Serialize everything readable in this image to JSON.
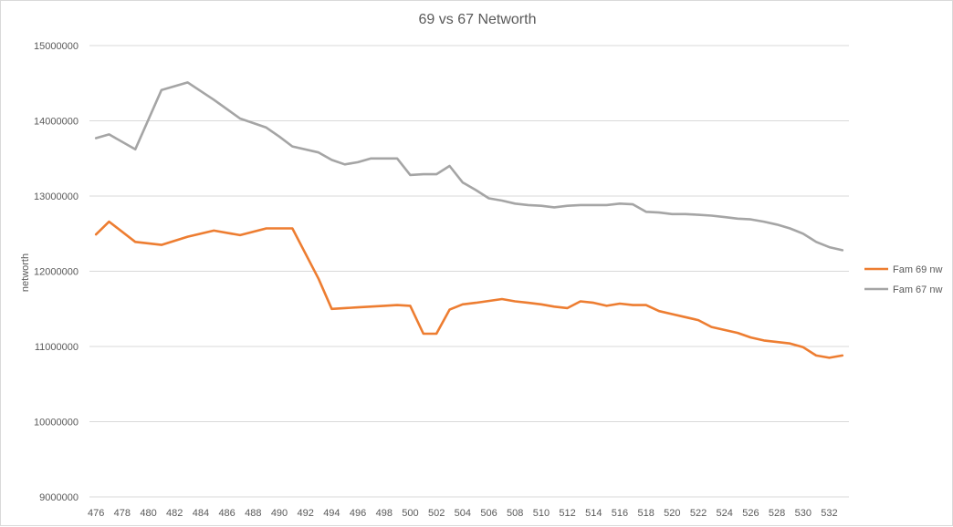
{
  "chart_data": {
    "type": "line",
    "title": "69 vs 67 Networth",
    "xlabel": "",
    "ylabel": "networth",
    "ylim": [
      9000000,
      15000000
    ],
    "yticks": [
      9000000,
      10000000,
      11000000,
      12000000,
      13000000,
      14000000,
      15000000
    ],
    "ytick_labels": [
      "9000000",
      "10000000",
      "11000000",
      "12000000",
      "13000000",
      "14000000",
      "15000000"
    ],
    "xticks": [
      476,
      478,
      480,
      482,
      484,
      486,
      488,
      490,
      492,
      494,
      496,
      498,
      500,
      502,
      504,
      506,
      508,
      510,
      512,
      514,
      516,
      518,
      520,
      522,
      524,
      526,
      528,
      530,
      532
    ],
    "xtick_labels": [
      "476",
      "478",
      "480",
      "482",
      "484",
      "486",
      "488",
      "490",
      "492",
      "494",
      "496",
      "498",
      "500",
      "502",
      "504",
      "506",
      "508",
      "510",
      "512",
      "514",
      "516",
      "518",
      "520",
      "522",
      "524",
      "526",
      "528",
      "530",
      "532"
    ],
    "xlim": [
      475.5,
      533.5
    ],
    "grid": true,
    "legend_position": "right",
    "series": [
      {
        "name": "Fam 69 nw",
        "color": "#ED7D31",
        "x": [
          476,
          477,
          479,
          481,
          483,
          485,
          487,
          489,
          490,
          491,
          493,
          494,
          496,
          498,
          499,
          500,
          501,
          502,
          503,
          504,
          505,
          507,
          508,
          509,
          510,
          511,
          512,
          513,
          514,
          515,
          516,
          517,
          518,
          519,
          520,
          521,
          522,
          523,
          524,
          525,
          526,
          527,
          528,
          529,
          530,
          531,
          532,
          533
        ],
        "y": [
          12490000,
          12660000,
          12390000,
          12350000,
          12460000,
          12540000,
          12480000,
          12570000,
          12570000,
          12570000,
          11900000,
          11500000,
          11520000,
          11540000,
          11550000,
          11540000,
          11170000,
          11170000,
          11490000,
          11560000,
          11580000,
          11630000,
          11600000,
          11580000,
          11560000,
          11530000,
          11510000,
          11600000,
          11580000,
          11540000,
          11570000,
          11550000,
          11550000,
          11470000,
          11430000,
          11390000,
          11350000,
          11260000,
          11220000,
          11180000,
          11120000,
          11080000,
          11060000,
          11040000,
          10990000,
          10880000,
          10850000,
          10880000
        ]
      },
      {
        "name": "Fam 67 nw",
        "color": "#A5A5A5",
        "x": [
          476,
          477,
          479,
          481,
          483,
          485,
          487,
          489,
          490,
          491,
          493,
          494,
          495,
          496,
          497,
          498,
          499,
          500,
          501,
          502,
          503,
          504,
          505,
          506,
          507,
          508,
          509,
          510,
          511,
          512,
          513,
          514,
          515,
          516,
          517,
          518,
          519,
          520,
          521,
          522,
          523,
          524,
          525,
          526,
          527,
          528,
          529,
          530,
          531,
          532,
          533
        ],
        "y": [
          13770000,
          13820000,
          13620000,
          14410000,
          14510000,
          14280000,
          14030000,
          13910000,
          13790000,
          13660000,
          13580000,
          13480000,
          13420000,
          13450000,
          13500000,
          13500000,
          13500000,
          13280000,
          13290000,
          13290000,
          13400000,
          13180000,
          13080000,
          12970000,
          12940000,
          12900000,
          12880000,
          12870000,
          12850000,
          12870000,
          12880000,
          12880000,
          12880000,
          12900000,
          12890000,
          12790000,
          12780000,
          12760000,
          12760000,
          12750000,
          12740000,
          12720000,
          12700000,
          12690000,
          12660000,
          12620000,
          12570000,
          12500000,
          12390000,
          12320000,
          12280000
        ]
      }
    ]
  }
}
